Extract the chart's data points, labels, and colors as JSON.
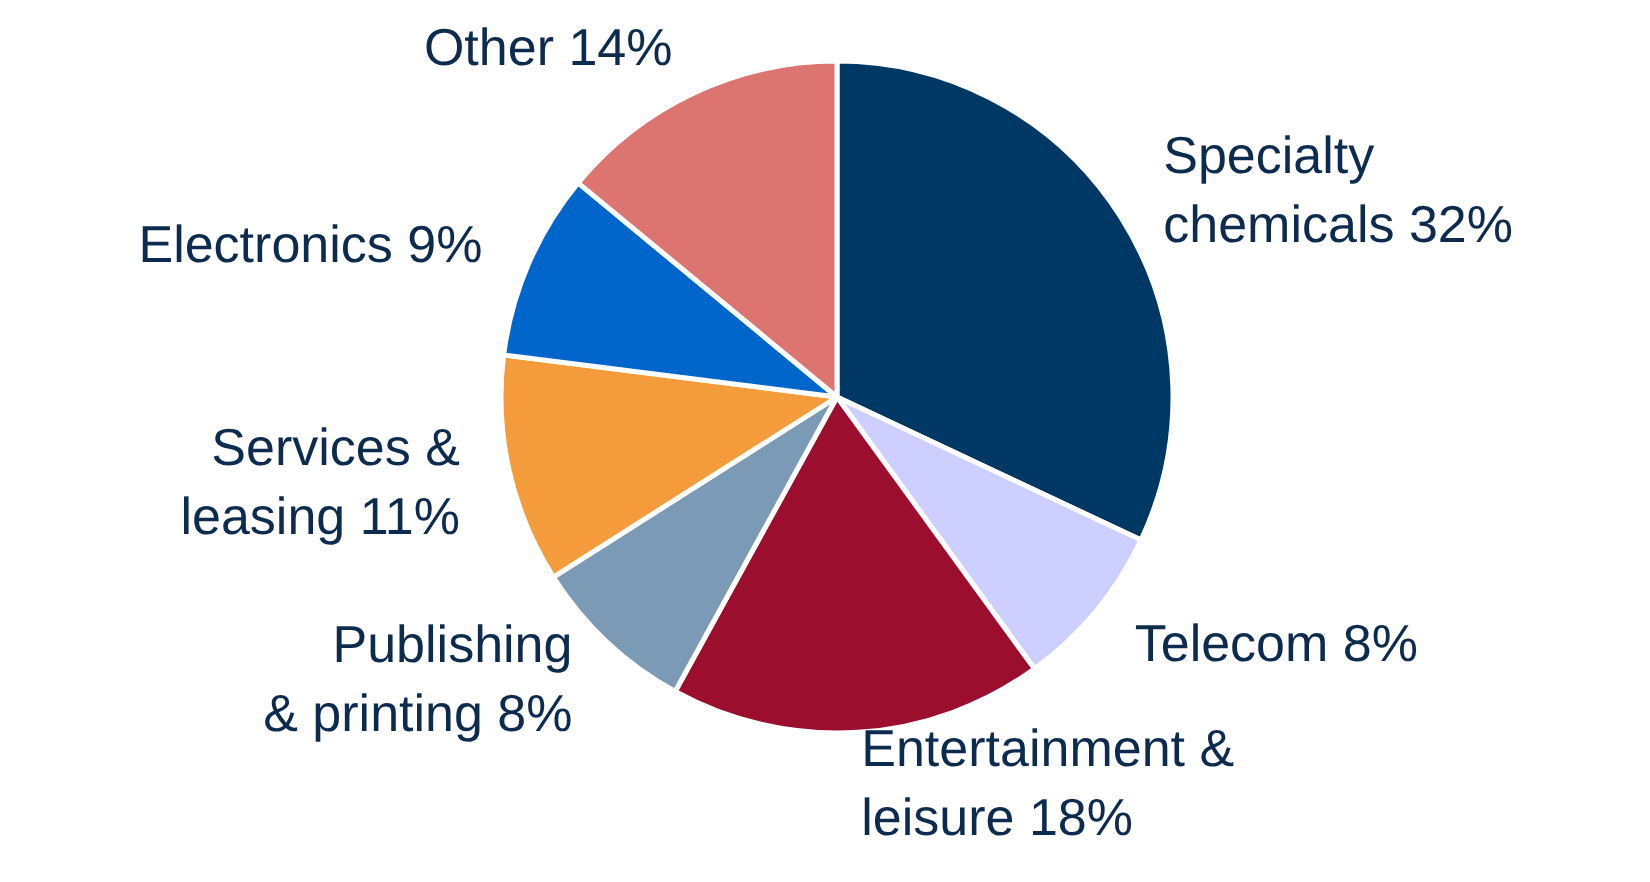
{
  "chart_data": {
    "type": "pie",
    "categories": [
      "Specialty\nchemicals",
      "Telecom",
      "Entertainment &\nleisure",
      "Publishing\n& printing",
      "Services &\nleasing",
      "Electronics",
      "Other"
    ],
    "values": [
      32,
      8,
      18,
      8,
      11,
      9,
      14
    ],
    "colors": [
      "#003865",
      "#cccfff",
      "#9b0e2e",
      "#7b9ab5",
      "#f49c3b",
      "#0066cc",
      "#dc7470"
    ],
    "value_labels": [
      "32%",
      "8%",
      "18%",
      "8%",
      "11%",
      "9%",
      "14%"
    ]
  }
}
